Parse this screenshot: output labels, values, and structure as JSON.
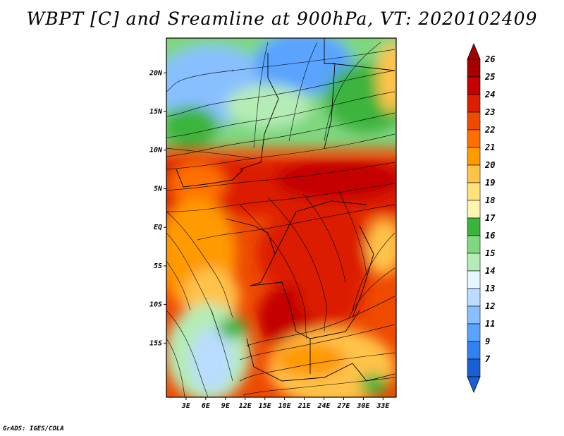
{
  "title": "WBPT [C] and Sreamline at 900hPa, VT: 2020102409",
  "credit": "GrADS: IGES/COLA",
  "map": {
    "lon_range": [
      0,
      35
    ],
    "lat_range": [
      -22,
      24.5
    ],
    "lat_ticks": [
      {
        "value": 20,
        "label": "20N"
      },
      {
        "value": 15,
        "label": "15N"
      },
      {
        "value": 10,
        "label": "10N"
      },
      {
        "value": 5,
        "label": "5N"
      },
      {
        "value": 0,
        "label": "EQ"
      },
      {
        "value": -5,
        "label": "5S"
      },
      {
        "value": -10,
        "label": "10S"
      },
      {
        "value": -15,
        "label": "15S"
      }
    ],
    "lon_ticks": [
      {
        "value": 3,
        "label": "3E"
      },
      {
        "value": 6,
        "label": "6E"
      },
      {
        "value": 9,
        "label": "9E"
      },
      {
        "value": 12,
        "label": "12E"
      },
      {
        "value": 15,
        "label": "15E"
      },
      {
        "value": 18,
        "label": "18E"
      },
      {
        "value": 21,
        "label": "21E"
      },
      {
        "value": 24,
        "label": "24E"
      },
      {
        "value": 27,
        "label": "27E"
      },
      {
        "value": 30,
        "label": "30E"
      },
      {
        "value": 33,
        "label": "33E"
      }
    ]
  },
  "colorbar": {
    "levels": [
      {
        "label": "26",
        "color": "#a50000"
      },
      {
        "label": "25",
        "color": "#c40000"
      },
      {
        "label": "24",
        "color": "#dc1e00"
      },
      {
        "label": "23",
        "color": "#ee4a00"
      },
      {
        "label": "22",
        "color": "#ff7000"
      },
      {
        "label": "21",
        "color": "#ff9a00"
      },
      {
        "label": "20",
        "color": "#ffc34a"
      },
      {
        "label": "19",
        "color": "#ffe27a"
      },
      {
        "label": "18",
        "color": "#fff5b0"
      },
      {
        "label": "17",
        "color": "#3cb43c"
      },
      {
        "label": "16",
        "color": "#7fd77f"
      },
      {
        "label": "15",
        "color": "#b5ecb5"
      },
      {
        "label": "14",
        "color": "#e6f6ff"
      },
      {
        "label": "13",
        "color": "#b9dcff"
      },
      {
        "label": "12",
        "color": "#88c0ff"
      },
      {
        "label": "11",
        "color": "#5aa3ff"
      },
      {
        "label": "9",
        "color": "#2f82f0"
      },
      {
        "label": "7",
        "color": "#1a5fd6"
      }
    ],
    "top_cap_color": "#a50000",
    "bottom_cap_color": "#1a5fd6"
  }
}
